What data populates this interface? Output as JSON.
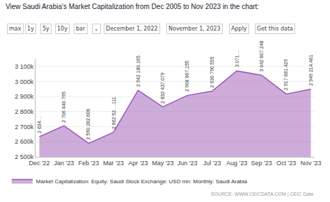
{
  "chart_data": {
    "type": "area",
    "title": "View Saudi Arabia's Market Capitalization from Dec 2005 to Nov 2023 in the chart:",
    "categories": [
      "Dec '22",
      "Jan '23",
      "Feb '23",
      "Mar '23",
      "Apr '23",
      "May '23",
      "Jun '23",
      "Jul '23",
      "Aug '23",
      "Sep '23",
      "Oct '23",
      "Nov '23"
    ],
    "series": [
      {
        "name": "Market Capitalization: Equity: Saudi Stock Exchange: USD mn: Monthly: Saudi Arabia",
        "color": "#9b59b6",
        "values": [
          2634000,
          2706440.795,
          2590282.606,
          2662523.111,
          2942180.165,
          2832437.079,
          2908667.155,
          2936790.555,
          3071000,
          3042807.248,
          2917681.429,
          2949214.461
        ],
        "value_labels": [
          "2 634…",
          "2 706 440.795",
          "2 590 282.606",
          "2 662 52….111",
          "2 942 180.165",
          "2 832 437.079",
          "2 908 667.155",
          "2 936 790.555",
          "3 071…",
          "3 042 807.248",
          "2 917 681.429",
          "2 949 214.461"
        ]
      }
    ],
    "ylim": [
      2500000,
      3150000
    ],
    "yticks": [
      {
        "value": 2500000,
        "label": "2 500k"
      },
      {
        "value": 2600000,
        "label": "2 600k"
      },
      {
        "value": 2700000,
        "label": "2 700k"
      },
      {
        "value": 2800000,
        "label": "2 800k"
      },
      {
        "value": 2900000,
        "label": "2 900k"
      },
      {
        "value": 3000000,
        "label": "3 000k"
      },
      {
        "value": 3100000,
        "label": "3 100k"
      }
    ],
    "grid": true,
    "legend": "lower left",
    "data_labels": true,
    "annotations": [
      "max",
      "1y",
      "5y",
      "10y",
      "bar",
      "⌄",
      "December 1, 2022",
      "November 1, 2023",
      "Apply",
      "Get this data",
      "SOURCE: WWW.CEICDATA.COM | CEIC Data"
    ]
  }
}
